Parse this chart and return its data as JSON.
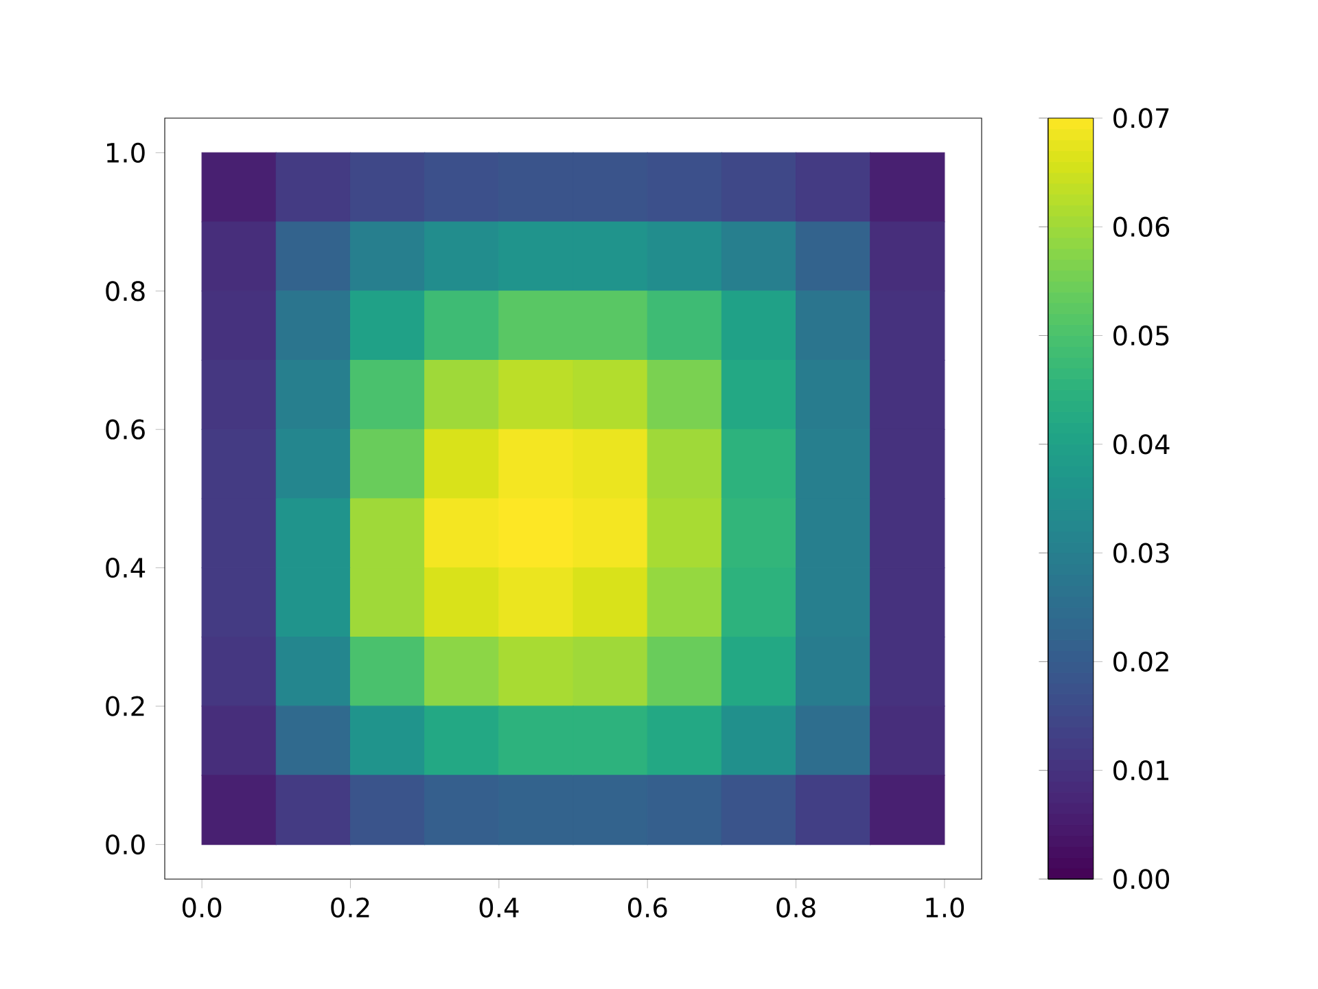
{
  "chart_data": {
    "type": "heatmap",
    "x": [
      0.05,
      0.15,
      0.25,
      0.35,
      0.45,
      0.55,
      0.65,
      0.75,
      0.85,
      0.95
    ],
    "cells": [
      [
        0.006,
        0.012,
        0.015,
        0.017,
        0.018,
        0.018,
        0.017,
        0.015,
        0.012,
        0.006
      ],
      [
        0.009,
        0.022,
        0.03,
        0.034,
        0.036,
        0.036,
        0.034,
        0.03,
        0.022,
        0.009
      ],
      [
        0.01,
        0.027,
        0.04,
        0.048,
        0.052,
        0.052,
        0.048,
        0.04,
        0.027,
        0.01
      ],
      [
        0.011,
        0.03,
        0.05,
        0.06,
        0.063,
        0.062,
        0.056,
        0.042,
        0.029,
        0.01
      ],
      [
        0.012,
        0.032,
        0.054,
        0.066,
        0.069,
        0.068,
        0.06,
        0.045,
        0.03,
        0.01
      ],
      [
        0.012,
        0.036,
        0.06,
        0.069,
        0.07,
        0.069,
        0.061,
        0.046,
        0.03,
        0.01
      ],
      [
        0.012,
        0.036,
        0.06,
        0.066,
        0.068,
        0.066,
        0.059,
        0.045,
        0.03,
        0.01
      ],
      [
        0.011,
        0.032,
        0.05,
        0.058,
        0.061,
        0.06,
        0.054,
        0.042,
        0.029,
        0.01
      ],
      [
        0.009,
        0.024,
        0.036,
        0.042,
        0.045,
        0.045,
        0.042,
        0.035,
        0.025,
        0.009
      ],
      [
        0.006,
        0.012,
        0.018,
        0.021,
        0.022,
        0.022,
        0.021,
        0.018,
        0.013,
        0.006
      ]
    ],
    "xlim": [
      -0.05,
      1.05
    ],
    "ylim": [
      -0.05,
      1.05
    ],
    "xticks": [
      {
        "value": 0,
        "label": "0.0"
      },
      {
        "value": 0.2,
        "label": "0.2"
      },
      {
        "value": 0.4,
        "label": "0.4"
      },
      {
        "value": 0.6,
        "label": "0.6"
      },
      {
        "value": 0.8,
        "label": "0.8"
      },
      {
        "value": 1,
        "label": "1.0"
      }
    ],
    "yticks": [
      {
        "value": 0,
        "label": "0.0"
      },
      {
        "value": 0.2,
        "label": "0.2"
      },
      {
        "value": 0.4,
        "label": "0.4"
      },
      {
        "value": 0.6,
        "label": "0.6"
      },
      {
        "value": 0.8,
        "label": "0.8"
      },
      {
        "value": 1,
        "label": "1.0"
      }
    ],
    "clim": [
      0,
      0.07
    ],
    "cticks": [
      {
        "value": 0,
        "label": "0.00"
      },
      {
        "value": 0.01,
        "label": "0.01"
      },
      {
        "value": 0.02,
        "label": "0.02"
      },
      {
        "value": 0.03,
        "label": "0.03"
      },
      {
        "value": 0.04,
        "label": "0.04"
      },
      {
        "value": 0.05,
        "label": "0.05"
      },
      {
        "value": 0.06,
        "label": "0.06"
      },
      {
        "value": 0.07,
        "label": "0.07"
      }
    ]
  }
}
